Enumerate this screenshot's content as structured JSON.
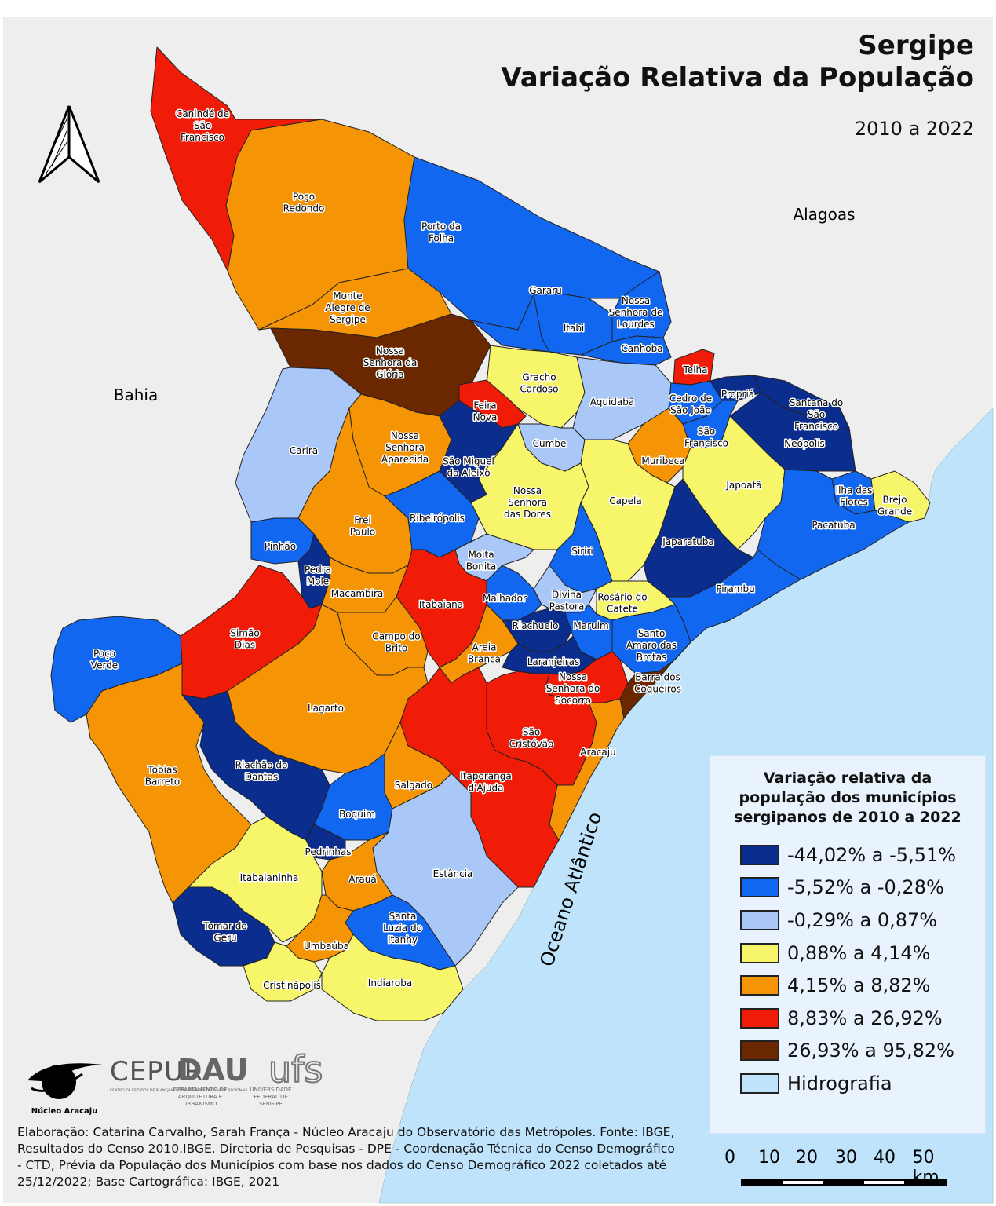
{
  "title_line1": "Sergipe",
  "title_line2": "Variação Relativa da População",
  "subtitle": "2010 a 2022",
  "regions": {
    "bahia": "Bahia",
    "alagoas": "Alagoas",
    "ocean": "Oceano Atlântico"
  },
  "legend": {
    "title_lines": [
      "Variação relativa da",
      "população dos municípios",
      "sergipanos de 2010 a 2022"
    ],
    "classes": [
      {
        "label": "-44,02% a -5,51%",
        "color": "#0b2d8e"
      },
      {
        "label": "-5,52% a -0,28%",
        "color": "#1167f0"
      },
      {
        "label": "-0,29% a 0,87%",
        "color": "#a9c8f8"
      },
      {
        "label": "0,88% a 4,14%",
        "color": "#f7f56a"
      },
      {
        "label": "4,15% a 8,82%",
        "color": "#f59505"
      },
      {
        "label": "8,83% a 26,92%",
        "color": "#f01c07"
      },
      {
        "label": "26,93% a 95,82%",
        "color": "#6b2700"
      },
      {
        "label": "Hidrografia",
        "color": "#bfe3fb"
      }
    ]
  },
  "municipalities": [
    {
      "name": "Canindé de São Francisco",
      "label_lines": [
        "Canindé de",
        "São",
        "Francisco"
      ],
      "class": 5
    },
    {
      "name": "Poço Redondo",
      "label_lines": [
        "Poço",
        "Redondo"
      ],
      "class": 4
    },
    {
      "name": "Porto da Folha",
      "label_lines": [
        "Porto da",
        "Folha"
      ],
      "class": 1
    },
    {
      "name": "Gararu",
      "label_lines": [
        "Gararu"
      ],
      "class": 1
    },
    {
      "name": "Itabi",
      "label_lines": [
        "Itabi"
      ],
      "class": 1
    },
    {
      "name": "Nossa Senhora de Lourdes",
      "label_lines": [
        "Nossa",
        "Senhora de",
        "Lourdes"
      ],
      "class": 1
    },
    {
      "name": "Canhoba",
      "label_lines": [
        "Canhoba"
      ],
      "class": 1
    },
    {
      "name": "Telha",
      "label_lines": [
        "Telha"
      ],
      "class": 5
    },
    {
      "name": "Monte Alegre de Sergipe",
      "label_lines": [
        "Monte",
        "Alegre de",
        "Sergipe"
      ],
      "class": 4
    },
    {
      "name": "Nossa Senhora da Glória",
      "label_lines": [
        "Nossa",
        "Senhora da",
        "Glória"
      ],
      "class": 6
    },
    {
      "name": "Gracho Cardoso",
      "label_lines": [
        "Gracho",
        "Cardoso"
      ],
      "class": 3
    },
    {
      "name": "Aquidabã",
      "label_lines": [
        "Aquidabã"
      ],
      "class": 2
    },
    {
      "name": "Cedro de São João",
      "label_lines": [
        "Cedro de",
        "São João"
      ],
      "class": 1
    },
    {
      "name": "Propriá",
      "label_lines": [
        "Propriá"
      ],
      "class": 0
    },
    {
      "name": "Santana do São Francisco",
      "label_lines": [
        "Santana do",
        "São",
        "Francisco"
      ],
      "class": 0
    },
    {
      "name": "Neópolis",
      "label_lines": [
        "Neópolis"
      ],
      "class": 0
    },
    {
      "name": "Feira Nova",
      "label_lines": [
        "Feira",
        "Nova"
      ],
      "class": 5
    },
    {
      "name": "Cumbe",
      "label_lines": [
        "Cumbe"
      ],
      "class": 2
    },
    {
      "name": "São Francisco",
      "label_lines": [
        "São",
        "Francisco"
      ],
      "class": 1
    },
    {
      "name": "Muribeca",
      "label_lines": [
        "Muribeca"
      ],
      "class": 4
    },
    {
      "name": "Japoatã",
      "label_lines": [
        "Japoatã"
      ],
      "class": 3
    },
    {
      "name": "Carira",
      "label_lines": [
        "Carira"
      ],
      "class": 2
    },
    {
      "name": "Nossa Senhora Aparecida",
      "label_lines": [
        "Nossa",
        "Senhora",
        "Aparecida"
      ],
      "class": 4
    },
    {
      "name": "São Miguel do Aleixo",
      "label_lines": [
        "São Miguel",
        "do Aleixo"
      ],
      "class": 0
    },
    {
      "name": "Nossa Senhora das Dores",
      "label_lines": [
        "Nossa",
        "Senhora",
        "das Dores"
      ],
      "class": 3
    },
    {
      "name": "Capela",
      "label_lines": [
        "Capela"
      ],
      "class": 3
    },
    {
      "name": "Ilha das Flores",
      "label_lines": [
        "Ilha das",
        "Flores"
      ],
      "class": 1
    },
    {
      "name": "Brejo Grande",
      "label_lines": [
        "Brejo",
        "Grande"
      ],
      "class": 3
    },
    {
      "name": "Pacatuba",
      "label_lines": [
        "Pacatuba"
      ],
      "class": 1
    },
    {
      "name": "Frei Paulo",
      "label_lines": [
        "Frei",
        "Paulo"
      ],
      "class": 4
    },
    {
      "name": "Ribeirópolis",
      "label_lines": [
        "Ribeirópolis"
      ],
      "class": 1
    },
    {
      "name": "Siriri",
      "label_lines": [
        "Siriri"
      ],
      "class": 1
    },
    {
      "name": "Japaratuba",
      "label_lines": [
        "Japaratuba"
      ],
      "class": 0
    },
    {
      "name": "Pinhão",
      "label_lines": [
        "Pinhão"
      ],
      "class": 1
    },
    {
      "name": "Pedra Mole",
      "label_lines": [
        "Pedra",
        "Mole"
      ],
      "class": 0
    },
    {
      "name": "Moita Bonita",
      "label_lines": [
        "Moita",
        "Bonita"
      ],
      "class": 2
    },
    {
      "name": "Macambira",
      "label_lines": [
        "Macambira"
      ],
      "class": 4
    },
    {
      "name": "Itabaiana",
      "label_lines": [
        "Itabaiana"
      ],
      "class": 5
    },
    {
      "name": "Malhador",
      "label_lines": [
        "Malhador"
      ],
      "class": 1
    },
    {
      "name": "Divina Pastora",
      "label_lines": [
        "Divina",
        "Pastora"
      ],
      "class": 2
    },
    {
      "name": "Rosário do Catete",
      "label_lines": [
        "Rosário do",
        "Catete"
      ],
      "class": 3
    },
    {
      "name": "Pirambu",
      "label_lines": [
        "Pirambu"
      ],
      "class": 1
    },
    {
      "name": "Simão Dias",
      "label_lines": [
        "Simão",
        "Dias"
      ],
      "class": 5
    },
    {
      "name": "Campo do Brito",
      "label_lines": [
        "Campo do",
        "Brito"
      ],
      "class": 4
    },
    {
      "name": "Riachuelo",
      "label_lines": [
        "Riachuelo"
      ],
      "class": 0
    },
    {
      "name": "Maruim",
      "label_lines": [
        "Maruim"
      ],
      "class": 1
    },
    {
      "name": "Santo Amaro das Brotas",
      "label_lines": [
        "Santo",
        "Amaro das",
        "Brotas"
      ],
      "class": 1
    },
    {
      "name": "Poço Verde",
      "label_lines": [
        "Poço",
        "Verde"
      ],
      "class": 1
    },
    {
      "name": "Areia Branca",
      "label_lines": [
        "Areia",
        "Branca"
      ],
      "class": 4
    },
    {
      "name": "Laranjeiras",
      "label_lines": [
        "Laranjeiras"
      ],
      "class": 0
    },
    {
      "name": "Nossa Senhora do Socorro",
      "label_lines": [
        "Nossa",
        "Senhora do",
        "Socorro"
      ],
      "class": 5
    },
    {
      "name": "Barra dos Coqueiros",
      "label_lines": [
        "Barra dos",
        "Coqueiros"
      ],
      "class": 6
    },
    {
      "name": "Lagarto",
      "label_lines": [
        "Lagarto"
      ],
      "class": 4
    },
    {
      "name": "São Cristóvão",
      "label_lines": [
        "São",
        "Cristóvão"
      ],
      "class": 5
    },
    {
      "name": "Aracaju",
      "label_lines": [
        "Aracaju"
      ],
      "class": 4
    },
    {
      "name": "Tobias Barreto",
      "label_lines": [
        "Tobias",
        "Barreto"
      ],
      "class": 4
    },
    {
      "name": "Riachão do Dantas",
      "label_lines": [
        "Riachão do",
        "Dantas"
      ],
      "class": 0
    },
    {
      "name": "Salgado",
      "label_lines": [
        "Salgado"
      ],
      "class": 4
    },
    {
      "name": "Itaporanga d'Ajuda",
      "label_lines": [
        "Itaporanga",
        "d'Ajuda"
      ],
      "class": 5
    },
    {
      "name": "Boquim",
      "label_lines": [
        "Boquim"
      ],
      "class": 1
    },
    {
      "name": "Pedrinhas",
      "label_lines": [
        "Pedrinhas"
      ],
      "class": 0
    },
    {
      "name": "Estância",
      "label_lines": [
        "Estância"
      ],
      "class": 2
    },
    {
      "name": "Itabaianinha",
      "label_lines": [
        "Itabaianinha"
      ],
      "class": 3
    },
    {
      "name": "Arauá",
      "label_lines": [
        "Arauá"
      ],
      "class": 4
    },
    {
      "name": "Tomar do Geru",
      "label_lines": [
        "Tomar do",
        "Geru"
      ],
      "class": 0
    },
    {
      "name": "Santa Luzia do Itanhy",
      "label_lines": [
        "Santa",
        "Luzia do",
        "Itanhy"
      ],
      "class": 1
    },
    {
      "name": "Umbaúba",
      "label_lines": [
        "Umbaúba"
      ],
      "class": 4
    },
    {
      "name": "Cristinápolis",
      "label_lines": [
        "Cristinápolis"
      ],
      "class": 3
    },
    {
      "name": "Indiaroba",
      "label_lines": [
        "Indiaroba"
      ],
      "class": 3
    }
  ],
  "credits": "Elaboração: Catarina Carvalho, Sarah França - Núcleo Aracaju do Observatório das Metrópoles. Fonte: IBGE, Resultados do Censo 2010.IBGE. Diretoria de Pesquisas - DPE -  Coordenação Técnica do Censo Demográfico - CTD, Prévia da População dos Municípios com base nos dados do Censo Demográfico 2022 coletados até 25/12/2022; Base Cartográfica: IBGE, 2021",
  "scale": {
    "labels": [
      "0",
      "10",
      "20",
      "30",
      "40",
      "50 km"
    ]
  },
  "logos": {
    "nucleo": "Núcleo Aracaju",
    "cepur": "CEPUR",
    "cepur_sub": "CENTRO DE ESTUDOS DE PLANEJAMENTO E PRÁTICAS URBANAS E REGIONAIS",
    "dau": "DAU",
    "dau_sub": [
      "DEPARTAMENTO DE",
      "ARQUITETURA E",
      "URBANISMO"
    ],
    "ufs": "ufs",
    "ufs_sub": [
      "UNIVERSIDADE",
      "FEDERAL DE",
      "SERGIPE"
    ]
  },
  "colors": {
    "background": "#eeeeee",
    "ocean": "#bfe3fb",
    "border": "#222222"
  }
}
